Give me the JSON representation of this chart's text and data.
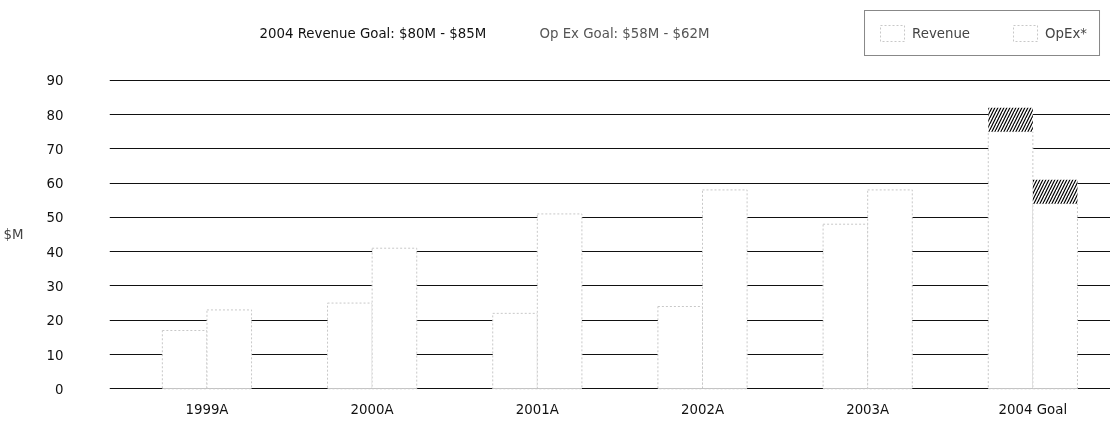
{
  "chart_data": {
    "type": "bar",
    "title": "2004 Revenue Goal: $80M - $85M",
    "subtitle": "Op Ex Goal: $58M - $62M",
    "ylabel": "$M",
    "categories": [
      "1999A",
      "2000A",
      "2001A",
      "2002A",
      "2003A",
      "2004 Goal"
    ],
    "series": [
      {
        "name": "Revenue",
        "color": "#ffffff",
        "values": [
          17,
          25,
          22,
          24,
          48,
          75
        ]
      },
      {
        "name": "OpEx*",
        "color": "#ffffff",
        "values": [
          23,
          41,
          51,
          58,
          58,
          54
        ]
      },
      {
        "color": "#000000",
        "values": [
          null,
          null,
          null,
          null,
          null,
          7
        ],
        "base": [
          null,
          null,
          null,
          null,
          null,
          75
        ]
      },
      {
        "color": "#000000",
        "values": [
          null,
          null,
          null,
          null,
          null,
          7
        ],
        "base": [
          null,
          null,
          null,
          null,
          null,
          54
        ]
      }
    ],
    "ylim": [
      -0.5,
      90.5
    ],
    "yticks": [
      0,
      10,
      20,
      30,
      40,
      50,
      60,
      70,
      80,
      90
    ],
    "grid": "y",
    "legend": "top right"
  }
}
